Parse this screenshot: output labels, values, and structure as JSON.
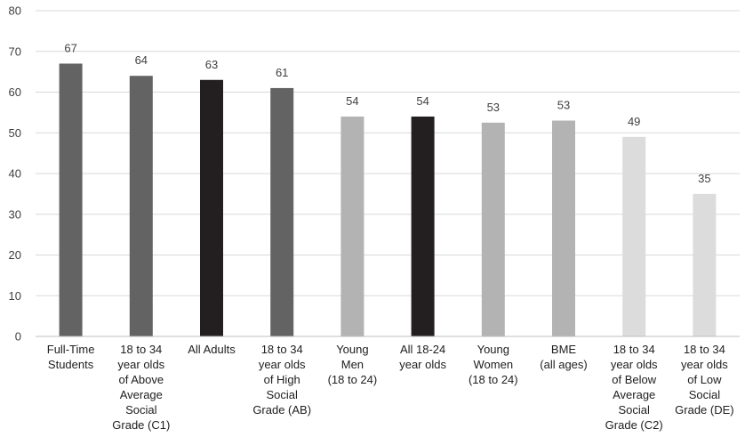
{
  "chart_data": {
    "type": "bar",
    "title": "",
    "xlabel": "",
    "ylabel": "",
    "ylim": [
      0,
      80
    ],
    "yticks": [
      0,
      10,
      20,
      30,
      40,
      50,
      60,
      70,
      80
    ],
    "grid": true,
    "legend": "none",
    "categories": [
      [
        "Full-Time",
        "Students"
      ],
      [
        "18 to 34",
        "year olds",
        "of Above",
        "Average",
        "Social",
        "Grade (C1)"
      ],
      [
        "All Adults"
      ],
      [
        "18 to 34",
        "year olds",
        "of High",
        "Social",
        "Grade (AB)"
      ],
      [
        "Young",
        "Men",
        "(18 to 24)"
      ],
      [
        "All 18-24",
        "year olds"
      ],
      [
        "Young",
        "Women",
        "(18 to 24)"
      ],
      [
        "BME",
        "(all ages)"
      ],
      [
        "18 to 34",
        "year olds",
        "of Below",
        "Average",
        "Social",
        "Grade (C2)"
      ],
      [
        "18 to 34",
        "year olds",
        "of Low",
        "Social",
        "Grade (DE)"
      ]
    ],
    "values": [
      67,
      64,
      63,
      61,
      54,
      54,
      52.5,
      53,
      49,
      35
    ],
    "data_labels": [
      "67",
      "64",
      "63",
      "61",
      "54",
      "54",
      "53",
      "53",
      "49",
      "35"
    ],
    "colors": [
      "#636363",
      "#636363",
      "#231f20",
      "#636363",
      "#b3b3b3",
      "#231f20",
      "#b3b3b3",
      "#b3b3b3",
      "#dcdcdc",
      "#dcdcdc"
    ]
  }
}
